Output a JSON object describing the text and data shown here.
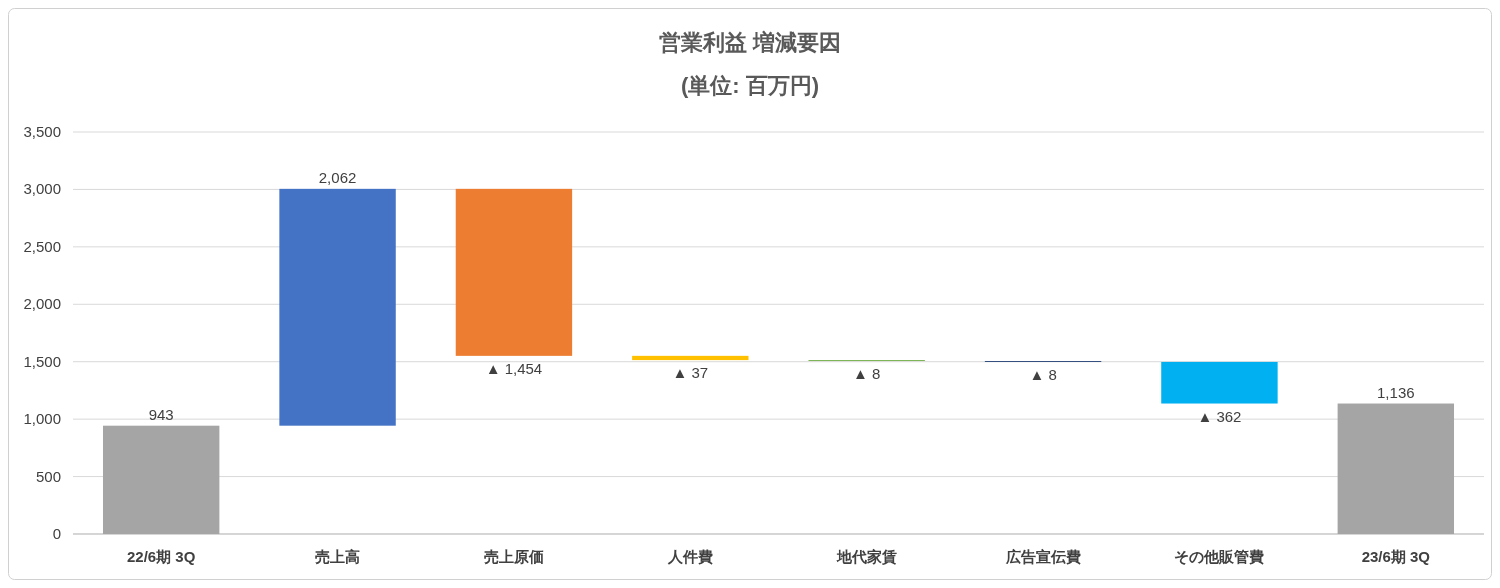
{
  "chart_data": {
    "type": "bar",
    "title": "営業利益 増減要因",
    "subtitle": "(単位: 百万円)",
    "categories": [
      "22/6期 3Q",
      "売上高",
      "売上原価",
      "人件費",
      "地代家賃",
      "広告宣伝費",
      "その他販管費",
      "23/6期 3Q"
    ],
    "values": [
      943,
      2062,
      -1454,
      -37,
      -8,
      -8,
      -362,
      1136
    ],
    "base": [
      0,
      943,
      3005,
      1551,
      1514,
      1506,
      1498,
      0
    ],
    "colors": [
      "#a5a5a5",
      "#4472c4",
      "#ed7d31",
      "#ffc000",
      "#70ad47",
      "#264478",
      "#00b0f0",
      "#a5a5a5"
    ],
    "value_labels": [
      "943",
      "2,062",
      "▲ 1,454",
      "▲ 37",
      "▲ 8",
      "▲ 8",
      "▲ 362",
      "1,136"
    ],
    "ylim": [
      0,
      3500
    ],
    "yticks": [
      {
        "value": 0,
        "label": "0"
      },
      {
        "value": 500,
        "label": "500"
      },
      {
        "value": 1000,
        "label": "1,000"
      },
      {
        "value": 1500,
        "label": "1,500"
      },
      {
        "value": 2000,
        "label": "2,000"
      },
      {
        "value": 2500,
        "label": "2,500"
      },
      {
        "value": 3000,
        "label": "3,000"
      },
      {
        "value": 3500,
        "label": "3,500"
      }
    ],
    "grid": "y"
  }
}
